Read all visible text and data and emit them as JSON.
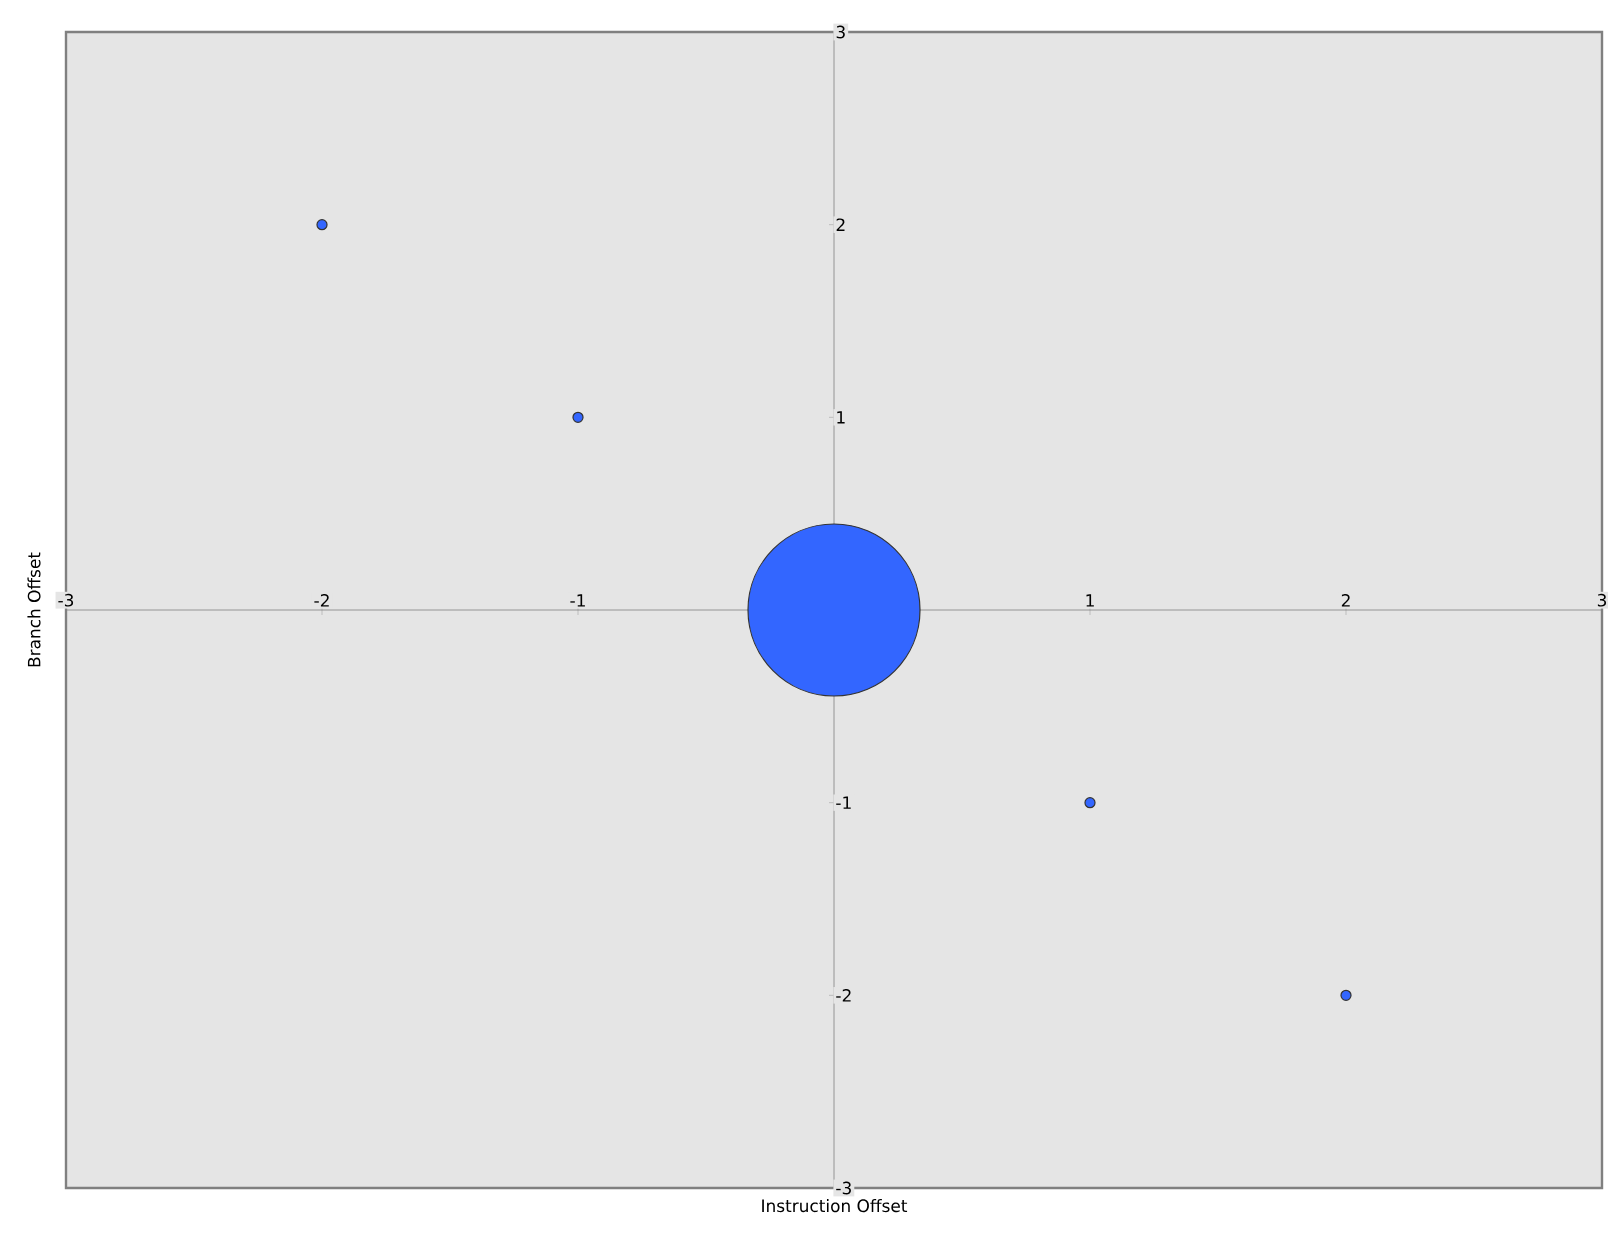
{
  "chart_data": {
    "type": "bubble",
    "xlabel": "Instruction Offset",
    "ylabel": "Branch Offset",
    "x": [
      -2,
      -1,
      0,
      1,
      2
    ],
    "series": [
      {
        "color": "#3366ff",
        "values": [
          2,
          1,
          0,
          -1,
          -2
        ],
        "sizes": [
          0.0034,
          0.0034,
          1,
          0.0034,
          0.0034
        ]
      }
    ],
    "xlim": [
      -3,
      3
    ],
    "ylim": [
      -3,
      3
    ],
    "xticks": [
      -3,
      -2,
      -1,
      1,
      2,
      3
    ],
    "yticks": [
      -3,
      -2,
      -1,
      1,
      2,
      3
    ]
  }
}
